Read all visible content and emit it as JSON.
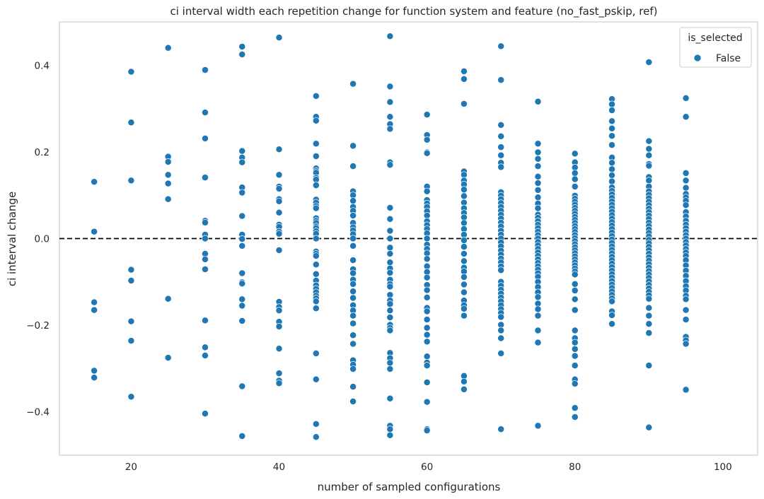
{
  "chart_data": {
    "type": "scatter",
    "title": "ci interval width each repetition change for function system and feature (no_fast_pskip, ref)",
    "xlabel": "number of sampled configurations",
    "ylabel": "ci interval change",
    "xlim": [
      10.3,
      104.7
    ],
    "ylim": [
      -0.5,
      0.5
    ],
    "xticks": [
      20,
      40,
      60,
      80,
      100
    ],
    "yticks": [
      -0.4,
      -0.2,
      0.0,
      0.2,
      0.4
    ],
    "ytick_labels": [
      "−0.4",
      "−0.2",
      "0.0",
      "0.2",
      "0.4"
    ],
    "reference_line": {
      "y": 0.0,
      "style": "dashed",
      "color": "#000000"
    },
    "grid": false,
    "legend": {
      "title": "is_selected",
      "position": "top-right",
      "entries": [
        {
          "label": "False",
          "color": "#1f77b4"
        }
      ]
    },
    "series": [
      {
        "name": "False",
        "color": "#1f77b4",
        "points": [
          {
            "x": 15,
            "y": [
              0.131,
              0.016,
              -0.147,
              -0.165,
              -0.305,
              -0.321
            ]
          },
          {
            "x": 20,
            "y": [
              0.385,
              0.268,
              0.134,
              -0.072,
              -0.097,
              -0.191,
              -0.236,
              -0.365
            ]
          },
          {
            "x": 25,
            "y": [
              0.44,
              0.189,
              0.177,
              0.147,
              0.127,
              0.091,
              -0.139,
              -0.275
            ]
          },
          {
            "x": 30,
            "y": [
              0.389,
              0.291,
              0.231,
              0.141,
              0.041,
              0.037,
              0.009,
              0.0,
              -0.035,
              -0.048,
              -0.071,
              -0.189,
              -0.251,
              -0.27,
              -0.404
            ]
          },
          {
            "x": 35,
            "y": [
              0.443,
              0.425,
              0.202,
              0.187,
              0.176,
              0.118,
              0.106,
              0.052,
              0.009,
              -0.001,
              -0.017,
              -0.08,
              -0.101,
              -0.104,
              -0.14,
              -0.155,
              -0.19,
              -0.341,
              -0.456
            ]
          },
          {
            "x": 40,
            "y": [
              0.464,
              0.206,
              0.147,
              0.12,
              0.115,
              0.091,
              0.086,
              0.06,
              0.032,
              0.027,
              0.016,
              0.011,
              -0.027,
              -0.146,
              -0.158,
              -0.166,
              -0.192,
              -0.203,
              -0.254,
              -0.311,
              -0.328,
              -0.334
            ]
          },
          {
            "x": 45,
            "y": [
              0.329,
              0.281,
              0.272,
              0.219,
              0.19,
              0.162,
              0.156,
              0.152,
              0.14,
              0.136,
              0.123,
              0.09,
              0.083,
              0.075,
              0.07,
              0.047,
              0.041,
              0.036,
              0.028,
              0.024,
              0.017,
              0.011,
              0.0,
              -0.03,
              -0.035,
              -0.04,
              -0.06,
              -0.082,
              -0.097,
              -0.108,
              -0.116,
              -0.124,
              -0.132,
              -0.138,
              -0.145,
              -0.161,
              -0.265,
              -0.325,
              -0.428,
              -0.458
            ]
          },
          {
            "x": 50,
            "y": [
              0.357,
              0.214,
              0.167,
              0.109,
              0.1,
              0.087,
              0.073,
              0.064,
              0.053,
              0.036,
              0.026,
              0.019,
              0.01,
              0.0,
              -0.017,
              -0.05,
              -0.071,
              -0.08,
              -0.095,
              -0.105,
              -0.122,
              -0.137,
              -0.154,
              -0.166,
              -0.178,
              -0.196,
              -0.223,
              -0.243,
              -0.281,
              -0.291,
              -0.301,
              -0.342,
              -0.376
            ]
          },
          {
            "x": 55,
            "y": [
              0.467,
              0.351,
              0.315,
              0.281,
              0.264,
              0.253,
              0.176,
              0.17,
              0.071,
              0.045,
              0.018,
              0.0,
              -0.021,
              -0.035,
              -0.055,
              -0.069,
              -0.079,
              -0.095,
              -0.105,
              -0.111,
              -0.13,
              -0.143,
              -0.151,
              -0.166,
              -0.182,
              -0.199,
              -0.206,
              -0.212,
              -0.264,
              -0.276,
              -0.287,
              -0.301,
              -0.369,
              -0.432,
              -0.44,
              -0.454
            ]
          },
          {
            "x": 60,
            "y": [
              0.286,
              0.239,
              0.228,
              0.199,
              0.197,
              0.12,
              0.109,
              0.089,
              0.081,
              0.073,
              0.063,
              0.053,
              0.04,
              0.031,
              0.022,
              0.012,
              0.0,
              -0.014,
              -0.024,
              -0.034,
              -0.047,
              -0.064,
              -0.077,
              -0.09,
              -0.107,
              -0.119,
              -0.136,
              -0.16,
              -0.168,
              -0.187,
              -0.206,
              -0.222,
              -0.238,
              -0.272,
              -0.286,
              -0.293,
              -0.332,
              -0.377,
              -0.44,
              -0.443
            ]
          },
          {
            "x": 65,
            "y": [
              0.386,
              0.368,
              0.311,
              0.155,
              0.147,
              0.134,
              0.125,
              0.113,
              0.098,
              0.083,
              0.07,
              0.059,
              0.049,
              0.036,
              0.022,
              0.009,
              -0.004,
              -0.019,
              -0.035,
              -0.052,
              -0.067,
              -0.076,
              -0.089,
              -0.106,
              -0.124,
              -0.143,
              -0.154,
              -0.162,
              -0.178,
              -0.317,
              -0.33,
              -0.348
            ]
          },
          {
            "x": 70,
            "y": [
              0.444,
              0.366,
              0.262,
              0.236,
              0.211,
              0.192,
              0.175,
              0.165,
              0.107,
              0.099,
              0.091,
              0.082,
              0.073,
              0.064,
              0.055,
              0.046,
              0.037,
              0.028,
              0.018,
              0.009,
              0.0,
              -0.009,
              -0.018,
              -0.028,
              -0.037,
              -0.046,
              -0.055,
              -0.064,
              -0.073,
              -0.1,
              -0.109,
              -0.118,
              -0.127,
              -0.136,
              -0.145,
              -0.154,
              -0.163,
              -0.172,
              -0.181,
              -0.199,
              -0.212,
              -0.23,
              -0.265,
              -0.44
            ]
          },
          {
            "x": 75,
            "y": [
              0.316,
              0.219,
              0.199,
              0.184,
              0.167,
              0.143,
              0.128,
              0.112,
              0.095,
              0.081,
              0.07,
              0.055,
              0.048,
              0.04,
              0.032,
              0.024,
              0.016,
              0.008,
              0.0,
              -0.008,
              -0.016,
              -0.024,
              -0.032,
              -0.04,
              -0.048,
              -0.056,
              -0.064,
              -0.072,
              -0.08,
              -0.088,
              -0.1,
              -0.112,
              -0.124,
              -0.135,
              -0.15,
              -0.163,
              -0.178,
              -0.212,
              -0.24,
              -0.432
            ]
          },
          {
            "x": 80,
            "y": [
              0.196,
              0.176,
              0.164,
              0.151,
              0.137,
              0.12,
              0.099,
              0.092,
              0.085,
              0.078,
              0.071,
              0.064,
              0.057,
              0.05,
              0.043,
              0.036,
              0.029,
              0.022,
              0.015,
              0.008,
              0.001,
              -0.006,
              -0.013,
              -0.02,
              -0.027,
              -0.034,
              -0.041,
              -0.048,
              -0.055,
              -0.062,
              -0.069,
              -0.076,
              -0.083,
              -0.105,
              -0.12,
              -0.14,
              -0.165,
              -0.212,
              -0.23,
              -0.24,
              -0.255,
              -0.271,
              -0.293,
              -0.325,
              -0.335,
              -0.391,
              -0.412
            ]
          },
          {
            "x": 85,
            "y": [
              0.322,
              0.31,
              0.296,
              0.271,
              0.254,
              0.237,
              0.216,
              0.187,
              0.175,
              0.16,
              0.146,
              0.132,
              0.118,
              0.11,
              0.102,
              0.094,
              0.086,
              0.078,
              0.07,
              0.062,
              0.054,
              0.046,
              0.038,
              0.03,
              0.022,
              0.014,
              0.006,
              -0.002,
              -0.01,
              -0.018,
              -0.026,
              -0.034,
              -0.042,
              -0.05,
              -0.058,
              -0.066,
              -0.074,
              -0.082,
              -0.09,
              -0.098,
              -0.106,
              -0.114,
              -0.122,
              -0.13,
              -0.138,
              -0.145,
              -0.168,
              -0.177,
              -0.197
            ]
          },
          {
            "x": 90,
            "y": [
              0.407,
              0.225,
              0.207,
              0.192,
              0.172,
              0.168,
              0.142,
              0.134,
              0.12,
              0.109,
              0.101,
              0.093,
              0.085,
              0.077,
              0.069,
              0.061,
              0.053,
              0.045,
              0.037,
              0.029,
              0.021,
              0.013,
              0.005,
              -0.003,
              -0.011,
              -0.019,
              -0.027,
              -0.035,
              -0.043,
              -0.051,
              -0.059,
              -0.067,
              -0.075,
              -0.083,
              -0.091,
              -0.099,
              -0.107,
              -0.115,
              -0.123,
              -0.131,
              -0.139,
              -0.16,
              -0.178,
              -0.197,
              -0.218,
              -0.293,
              -0.436
            ]
          },
          {
            "x": 95,
            "y": [
              0.324,
              0.281,
              0.151,
              0.134,
              0.117,
              0.103,
              0.095,
              0.087,
              0.077,
              0.061,
              0.051,
              0.041,
              0.032,
              0.024,
              0.016,
              0.008,
              0.0,
              -0.008,
              -0.016,
              -0.024,
              -0.032,
              -0.04,
              -0.05,
              -0.062,
              -0.074,
              -0.086,
              -0.098,
              -0.11,
              -0.12,
              -0.132,
              -0.14,
              -0.165,
              -0.187,
              -0.227,
              -0.235,
              -0.243,
              -0.349
            ]
          }
        ]
      }
    ]
  }
}
